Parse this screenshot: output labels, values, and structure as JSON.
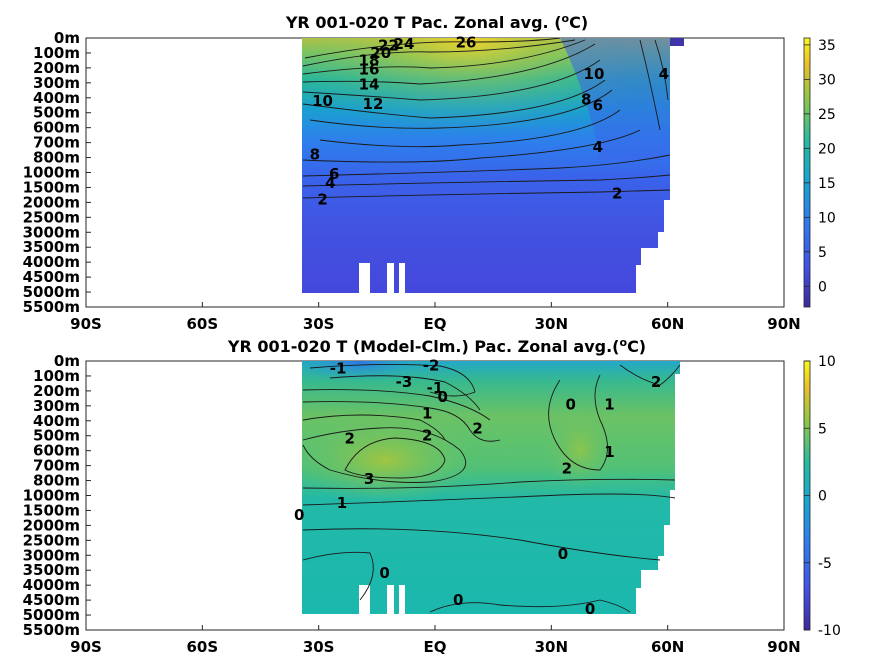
{
  "chart_data": [
    {
      "type": "heatmap",
      "title": "YR 001-020 T Pac. Zonal avg. (",
      "title_sup": "o",
      "title_tail": "C)",
      "x_ticks": [
        "90S",
        "60S",
        "30S",
        "EQ",
        "30N",
        "60N",
        "90N"
      ],
      "x_tick_values": [
        -90,
        -60,
        -30,
        0,
        30,
        60,
        90
      ],
      "y_ticks": [
        "0m",
        "100m",
        "200m",
        "300m",
        "400m",
        "500m",
        "600m",
        "700m",
        "800m",
        "1000m",
        "1500m",
        "2000m",
        "2500m",
        "3000m",
        "3500m",
        "4000m",
        "4500m",
        "5000m",
        "5500m"
      ],
      "colorbar_ticks": [
        "35",
        "30",
        "25",
        "20",
        "15",
        "10",
        "5",
        "0"
      ],
      "colorbar_range": [
        -3,
        36
      ],
      "data_extent_lat": [
        -35,
        61
      ],
      "contour_labels": [
        {
          "text": "24",
          "lat": -8,
          "depth_idx": 0.4
        },
        {
          "text": "26",
          "lat": 8,
          "depth_idx": 0.3
        },
        {
          "text": "22",
          "lat": -12,
          "depth_idx": 0.5
        },
        {
          "text": "20",
          "lat": -14,
          "depth_idx": 1.0
        },
        {
          "text": "18",
          "lat": -17,
          "depth_idx": 1.5
        },
        {
          "text": "16",
          "lat": -17,
          "depth_idx": 2.1
        },
        {
          "text": "14",
          "lat": -17,
          "depth_idx": 3.1
        },
        {
          "text": "12",
          "lat": -16,
          "depth_idx": 4.4
        },
        {
          "text": "10",
          "lat": -29,
          "depth_idx": 4.2
        },
        {
          "text": "10",
          "lat": 41,
          "depth_idx": 2.4
        },
        {
          "text": "8",
          "lat": 39,
          "depth_idx": 4.1
        },
        {
          "text": "6",
          "lat": 42,
          "depth_idx": 4.5
        },
        {
          "text": "4",
          "lat": 59,
          "depth_idx": 2.4
        },
        {
          "text": "8",
          "lat": -31,
          "depth_idx": 7.8
        },
        {
          "text": "6",
          "lat": -26,
          "depth_idx": 9.1
        },
        {
          "text": "4",
          "lat": -27,
          "depth_idx": 9.7
        },
        {
          "text": "4",
          "lat": 42,
          "depth_idx": 7.3
        },
        {
          "text": "2",
          "lat": -29,
          "depth_idx": 10.8
        },
        {
          "text": "2",
          "lat": 47,
          "depth_idx": 10.4
        }
      ]
    },
    {
      "type": "heatmap",
      "title": "YR 001-020 T (Model-Clm.) Pac. Zonal avg.(",
      "title_sup": "o",
      "title_tail": "C)",
      "x_ticks": [
        "90S",
        "60S",
        "30S",
        "EQ",
        "30N",
        "60N",
        "90N"
      ],
      "x_tick_values": [
        -90,
        -60,
        -30,
        0,
        30,
        60,
        90
      ],
      "y_ticks": [
        "0m",
        "100m",
        "200m",
        "300m",
        "400m",
        "500m",
        "600m",
        "700m",
        "800m",
        "1000m",
        "1500m",
        "2000m",
        "2500m",
        "3000m",
        "3500m",
        "4000m",
        "4500m",
        "5000m",
        "5500m"
      ],
      "colorbar_ticks": [
        "10",
        "5",
        "0",
        "-5",
        "-10"
      ],
      "colorbar_range": [
        -10,
        10
      ],
      "data_extent_lat": [
        -35,
        61
      ],
      "contour_labels": [
        {
          "text": "-1",
          "lat": -25,
          "depth_idx": 0.5
        },
        {
          "text": "-2",
          "lat": -1,
          "depth_idx": 0.3
        },
        {
          "text": "-3",
          "lat": -8,
          "depth_idx": 1.4
        },
        {
          "text": "-1",
          "lat": 0,
          "depth_idx": 1.8
        },
        {
          "text": "0",
          "lat": 2,
          "depth_idx": 2.4
        },
        {
          "text": "1",
          "lat": -2,
          "depth_idx": 3.5
        },
        {
          "text": "2",
          "lat": 11,
          "depth_idx": 4.5
        },
        {
          "text": "0",
          "lat": 35,
          "depth_idx": 2.9
        },
        {
          "text": "1",
          "lat": 45,
          "depth_idx": 2.9
        },
        {
          "text": "2",
          "lat": 57,
          "depth_idx": 1.4
        },
        {
          "text": "2",
          "lat": -22,
          "depth_idx": 5.2
        },
        {
          "text": "2",
          "lat": -2,
          "depth_idx": 5.0
        },
        {
          "text": "3",
          "lat": -17,
          "depth_idx": 7.9
        },
        {
          "text": "2",
          "lat": 34,
          "depth_idx": 7.2
        },
        {
          "text": "1",
          "lat": 45,
          "depth_idx": 6.1
        },
        {
          "text": "1",
          "lat": -24,
          "depth_idx": 9.5
        },
        {
          "text": "0",
          "lat": -35,
          "depth_idx": 10.3
        },
        {
          "text": "0",
          "lat": 33,
          "depth_idx": 12.9
        },
        {
          "text": "0",
          "lat": -13,
          "depth_idx": 14.2
        },
        {
          "text": "0",
          "lat": 6,
          "depth_idx": 16.0
        },
        {
          "text": "0",
          "lat": 40,
          "depth_idx": 16.6
        }
      ]
    }
  ]
}
